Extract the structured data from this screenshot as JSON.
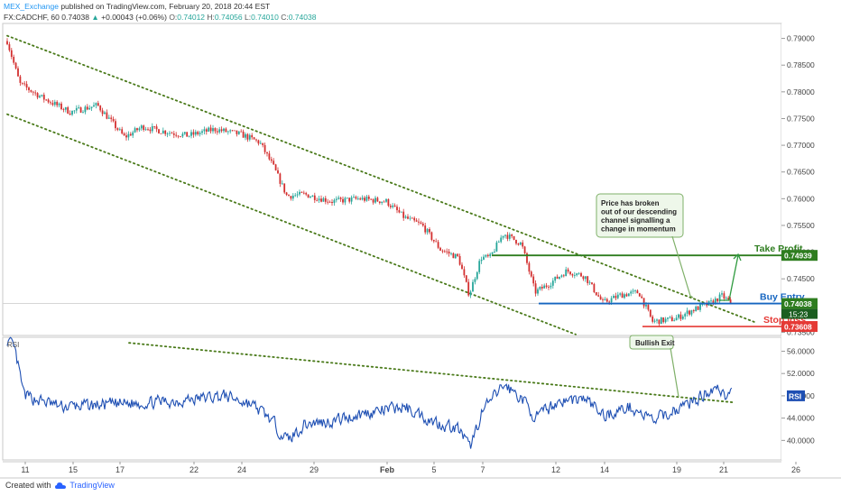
{
  "header": {
    "publisher": "MEX_Exchange",
    "published_text": "published on TradingView.com, February 20, 2018 20:44 EST",
    "symbol": "FX:CADCHF, 60",
    "last": "0.74038",
    "change": "+0.00043 (+0.06%)",
    "o_label": "O:",
    "o": "0.74012",
    "h_label": "H:",
    "h": "0.74056",
    "l_label": "L:",
    "l": "0.74010",
    "c_label": "C:",
    "c": "0.74038"
  },
  "footer": {
    "created_with": "Created with",
    "brand": "TradingView"
  },
  "colors": {
    "up": "#26a69a",
    "down": "#d32f2f",
    "rsi": "#1e4fb3",
    "channel": "#4a7a1a",
    "take_profit": "#2e7d1f",
    "entry": "#1565c0",
    "stop": "#e53935"
  },
  "annotations": {
    "callout_lines": [
      "Price has broken",
      "out of our descending",
      "channel signalling a",
      "change in momentum"
    ],
    "bullish_exit": "Bullish Exit",
    "take_profit": "Take Profit",
    "buy_entry": "Buy Entry",
    "stop_loss": "Stop loss",
    "rsi_label": "RSI",
    "rsi_tag": "RSI"
  },
  "chart_data": [
    {
      "type": "candlestick",
      "title": "FX:CADCHF, 60",
      "x_ticks": [
        "11",
        "15",
        "17",
        "22",
        "24",
        "29",
        "Feb",
        "5",
        "7",
        "12",
        "14",
        "19",
        "21",
        "26"
      ],
      "y_ticks": [
        "0.79000",
        "0.78500",
        "0.78000",
        "0.77500",
        "0.77000",
        "0.76500",
        "0.76000",
        "0.75500",
        "0.75000",
        "0.74500",
        "0.74000",
        "0.73500"
      ],
      "ylim": [
        0.7344,
        0.7928
      ],
      "price_path": [
        {
          "t": 0,
          "p": 0.7895
        },
        {
          "t": 14,
          "p": 0.7815
        },
        {
          "t": 40,
          "p": 0.7788
        },
        {
          "t": 70,
          "p": 0.7762
        },
        {
          "t": 100,
          "p": 0.7775
        },
        {
          "t": 130,
          "p": 0.7715
        },
        {
          "t": 150,
          "p": 0.7735
        },
        {
          "t": 170,
          "p": 0.7727
        },
        {
          "t": 200,
          "p": 0.7718
        },
        {
          "t": 230,
          "p": 0.773
        },
        {
          "t": 260,
          "p": 0.772
        },
        {
          "t": 280,
          "p": 0.7705
        },
        {
          "t": 295,
          "p": 0.766
        },
        {
          "t": 310,
          "p": 0.7605
        },
        {
          "t": 330,
          "p": 0.7608
        },
        {
          "t": 360,
          "p": 0.7595
        },
        {
          "t": 390,
          "p": 0.76
        },
        {
          "t": 420,
          "p": 0.7595
        },
        {
          "t": 440,
          "p": 0.7565
        },
        {
          "t": 460,
          "p": 0.755
        },
        {
          "t": 480,
          "p": 0.7505
        },
        {
          "t": 500,
          "p": 0.749
        },
        {
          "t": 512,
          "p": 0.742
        },
        {
          "t": 525,
          "p": 0.749
        },
        {
          "t": 535,
          "p": 0.749
        },
        {
          "t": 550,
          "p": 0.7535
        },
        {
          "t": 570,
          "p": 0.7515
        },
        {
          "t": 585,
          "p": 0.7425
        },
        {
          "t": 600,
          "p": 0.744
        },
        {
          "t": 620,
          "p": 0.7465
        },
        {
          "t": 640,
          "p": 0.7455
        },
        {
          "t": 660,
          "p": 0.7405
        },
        {
          "t": 680,
          "p": 0.742
        },
        {
          "t": 700,
          "p": 0.7425
        },
        {
          "t": 715,
          "p": 0.737
        },
        {
          "t": 740,
          "p": 0.7375
        },
        {
          "t": 760,
          "p": 0.7392
        },
        {
          "t": 780,
          "p": 0.7405
        },
        {
          "t": 792,
          "p": 0.7418
        },
        {
          "t": 803,
          "p": 0.7404
        }
      ],
      "last_price": "0.74038",
      "countdown": "15:23",
      "levels": [
        {
          "name": "Take Profit",
          "value": 0.74939,
          "label": "0.74939",
          "color": "#2e7d1f"
        },
        {
          "name": "Buy Entry",
          "value": 0.74038,
          "label": "0.74038",
          "color": "#1565c0"
        },
        {
          "name": "Stop loss",
          "value": 0.73608,
          "label": "0.73608",
          "color": "#e53935"
        }
      ],
      "channel": {
        "upper": [
          {
            "t": 0,
            "p": 0.7905
          },
          {
            "t": 830,
            "p": 0.7368
          }
        ],
        "lower": [
          {
            "t": 0,
            "p": 0.7758
          },
          {
            "t": 630,
            "p": 0.7346
          }
        ]
      }
    },
    {
      "type": "line",
      "title": "RSI",
      "y_ticks": [
        "56.0000",
        "52.0000",
        "48.0000",
        "44.0000",
        "40.0000"
      ],
      "ylim": [
        36.5,
        58.5
      ],
      "last_value": "RSI",
      "rsi_path": [
        {
          "t": 0,
          "v": 58
        },
        {
          "t": 8,
          "v": 56
        },
        {
          "t": 18,
          "v": 48
        },
        {
          "t": 60,
          "v": 46
        },
        {
          "t": 120,
          "v": 46.5
        },
        {
          "t": 180,
          "v": 47
        },
        {
          "t": 240,
          "v": 48
        },
        {
          "t": 270,
          "v": 46.5
        },
        {
          "t": 290,
          "v": 44
        },
        {
          "t": 310,
          "v": 40
        },
        {
          "t": 330,
          "v": 43
        },
        {
          "t": 360,
          "v": 43.5
        },
        {
          "t": 400,
          "v": 45
        },
        {
          "t": 440,
          "v": 46
        },
        {
          "t": 470,
          "v": 43.5
        },
        {
          "t": 500,
          "v": 42
        },
        {
          "t": 512,
          "v": 38.5
        },
        {
          "t": 525,
          "v": 45
        },
        {
          "t": 550,
          "v": 50
        },
        {
          "t": 570,
          "v": 47.5
        },
        {
          "t": 585,
          "v": 44
        },
        {
          "t": 610,
          "v": 47
        },
        {
          "t": 640,
          "v": 47.5
        },
        {
          "t": 660,
          "v": 44.5
        },
        {
          "t": 690,
          "v": 46
        },
        {
          "t": 715,
          "v": 43.5
        },
        {
          "t": 740,
          "v": 45.5
        },
        {
          "t": 770,
          "v": 48
        },
        {
          "t": 785,
          "v": 50
        },
        {
          "t": 795,
          "v": 48
        },
        {
          "t": 803,
          "v": 48.5
        }
      ],
      "trendline": [
        {
          "t": 135,
          "v": 57.5
        },
        {
          "t": 806,
          "v": 46.8
        }
      ]
    }
  ]
}
